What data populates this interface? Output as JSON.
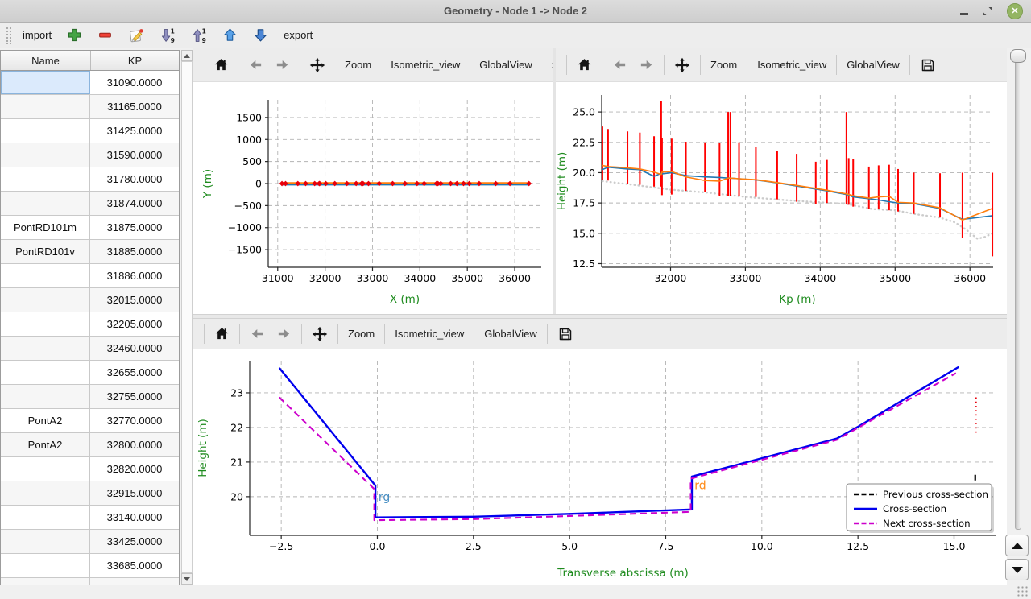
{
  "window": {
    "title": "Geometry - Node 1 -> Node 2",
    "close_glyph": "✕"
  },
  "main_toolbar": {
    "import_label": "import",
    "export_label": "export"
  },
  "table": {
    "columns": [
      "Name",
      "KP"
    ],
    "rows": [
      {
        "name": "",
        "kp": "31090.0000"
      },
      {
        "name": "",
        "kp": "31165.0000"
      },
      {
        "name": "",
        "kp": "31425.0000"
      },
      {
        "name": "",
        "kp": "31590.0000"
      },
      {
        "name": "",
        "kp": "31780.0000"
      },
      {
        "name": "",
        "kp": "31874.0000"
      },
      {
        "name": "PontRD101m",
        "kp": "31875.0000"
      },
      {
        "name": "PontRD101v",
        "kp": "31885.0000"
      },
      {
        "name": "",
        "kp": "31886.0000"
      },
      {
        "name": "",
        "kp": "32015.0000"
      },
      {
        "name": "",
        "kp": "32205.0000"
      },
      {
        "name": "",
        "kp": "32460.0000"
      },
      {
        "name": "",
        "kp": "32655.0000"
      },
      {
        "name": "",
        "kp": "32755.0000"
      },
      {
        "name": "PontA2",
        "kp": "32770.0000"
      },
      {
        "name": "PontA2",
        "kp": "32800.0000"
      },
      {
        "name": "",
        "kp": "32820.0000"
      },
      {
        "name": "",
        "kp": "32915.0000"
      },
      {
        "name": "",
        "kp": "33140.0000"
      },
      {
        "name": "",
        "kp": "33425.0000"
      },
      {
        "name": "",
        "kp": "33685.0000"
      },
      {
        "name": "",
        "kp": ""
      }
    ]
  },
  "chart_toolbars": {
    "zoom_label": "Zoom",
    "isometric_label": "Isometric_view",
    "globalview_label": "GlobalView",
    "overflow_glyph": "»"
  },
  "chart_data": [
    {
      "id": "plan-view",
      "type": "line",
      "title": "",
      "xlabel": "X (m)",
      "ylabel": "Y (m)",
      "axis_label_color": "#1e8b1e",
      "grid": true,
      "xlim": [
        30800,
        36560
      ],
      "ylim": [
        -1900,
        1900
      ],
      "xticks": [
        31000,
        32000,
        33000,
        34000,
        35000,
        36000
      ],
      "xtick_labels": [
        "31000",
        "32000",
        "33000",
        "34000",
        "35000",
        "36000"
      ],
      "yticks": [
        -1500,
        -1000,
        -500,
        0,
        500,
        1000,
        1500
      ],
      "ytick_labels": [
        "−1500",
        "−1000",
        "−500",
        "0",
        "500",
        "1000",
        "1500"
      ],
      "series": [
        {
          "name": "reach-axis-blue",
          "color": "#1f77b4",
          "width": 2,
          "x": [
            31090,
            36290
          ],
          "y": [
            -25,
            -25
          ]
        },
        {
          "name": "reach-axis-orange",
          "color": "#ff7f0e",
          "width": 2.3,
          "x": [
            31090,
            36290
          ],
          "y": [
            12,
            12
          ]
        }
      ],
      "markers": {
        "name": "cross-section-markers",
        "color": "#e8000b",
        "shape": "diamond",
        "size": 3.4,
        "x": [
          31090,
          31165,
          31425,
          31590,
          31780,
          31875,
          31886,
          32015,
          32205,
          32460,
          32655,
          32770,
          32800,
          32915,
          33140,
          33425,
          33685,
          33940,
          34090,
          34350,
          34380,
          34440,
          34650,
          34780,
          34920,
          35040,
          35250,
          35600,
          35900,
          36300
        ],
        "y": 0
      }
    },
    {
      "id": "profile-view",
      "type": "line",
      "title": "",
      "xlabel": "Kp (m)",
      "ylabel": "Height (m)",
      "axis_label_color": "#1e8b1e",
      "grid": true,
      "xlim": [
        31080,
        36310
      ],
      "ylim": [
        12.2,
        26.4
      ],
      "xticks": [
        32000,
        33000,
        34000,
        35000,
        36000
      ],
      "xtick_labels": [
        "32000",
        "33000",
        "34000",
        "35000",
        "36000"
      ],
      "yticks": [
        12.5,
        15.0,
        17.5,
        20.0,
        22.5,
        25.0
      ],
      "ytick_labels": [
        "12.5",
        "15.0",
        "17.5",
        "20.0",
        "22.5",
        "25.0"
      ],
      "underlay": [
        {
          "name": "bottom-profile",
          "color": "#cccccc",
          "width": 2.4,
          "dash": "0.6,4.4",
          "linecap": "round",
          "x": [
            31090,
            31500,
            32000,
            32500,
            33000,
            33500,
            34000,
            34350,
            34700,
            35000,
            35300,
            35600,
            35800,
            35950,
            36100,
            36200,
            36300
          ],
          "y": [
            19.3,
            19.0,
            18.6,
            18.35,
            18.0,
            17.75,
            17.55,
            17.42,
            17.0,
            16.9,
            16.55,
            16.3,
            15.9,
            15.3,
            14.55,
            14.7,
            15.0
          ]
        }
      ],
      "stations": {
        "name": "cross-section-extents",
        "color": "#ff0000",
        "width": 2,
        "kp": [
          31090,
          31165,
          31425,
          31590,
          31780,
          31875,
          31886,
          32015,
          32205,
          32460,
          32655,
          32770,
          32800,
          32915,
          33140,
          33425,
          33685,
          33940,
          34090,
          34350,
          34380,
          34440,
          34650,
          34780,
          34920,
          35040,
          35250,
          35600,
          35900,
          36300
        ],
        "top": [
          23.8,
          23.6,
          23.4,
          23.3,
          23.0,
          25.9,
          22.85,
          22.8,
          22.55,
          22.5,
          22.45,
          25.0,
          25.0,
          22.5,
          22.15,
          21.8,
          21.55,
          20.9,
          21.05,
          25.0,
          21.2,
          21.15,
          20.5,
          20.6,
          20.65,
          20.3,
          20.0,
          19.95,
          20.0,
          20.0
        ],
        "bottom": [
          19.4,
          19.35,
          19.1,
          19.0,
          18.85,
          18.85,
          18.15,
          18.2,
          18.5,
          18.4,
          18.1,
          18.1,
          18.05,
          18.1,
          18.0,
          17.8,
          17.6,
          17.4,
          17.5,
          17.4,
          17.35,
          17.2,
          17.0,
          17.0,
          16.9,
          16.8,
          16.6,
          16.3,
          14.6,
          13.1
        ]
      },
      "series": [
        {
          "name": "left-bank-line",
          "color": "#1f77b4",
          "width": 1.6,
          "x": [
            31090,
            31165,
            31425,
            31590,
            31780,
            31875,
            31886,
            32015,
            32205,
            32460,
            32655,
            32770,
            32800,
            32915,
            33140,
            33425,
            33685,
            33940,
            34090,
            34350,
            34380,
            34440,
            34650,
            34780,
            34920,
            35040,
            35250,
            35600,
            35900,
            36300
          ],
          "y": [
            20.25,
            20.45,
            20.3,
            20.25,
            19.7,
            19.95,
            19.9,
            20.0,
            19.75,
            19.65,
            19.6,
            19.55,
            19.55,
            19.5,
            19.4,
            19.15,
            18.9,
            18.65,
            18.5,
            18.2,
            18.15,
            18.0,
            17.85,
            17.75,
            17.6,
            17.5,
            17.45,
            17.05,
            16.15,
            16.45
          ]
        },
        {
          "name": "right-bank-line",
          "color": "#ff7f0e",
          "width": 1.6,
          "x": [
            31090,
            31165,
            31425,
            31590,
            31780,
            31875,
            31886,
            32015,
            32205,
            32460,
            32655,
            32770,
            32800,
            32915,
            33140,
            33425,
            33685,
            33940,
            34090,
            34350,
            34380,
            34440,
            34650,
            34780,
            34920,
            35040,
            35250,
            35600,
            35900,
            36300
          ],
          "y": [
            20.6,
            20.5,
            20.4,
            20.3,
            20.05,
            19.85,
            20.05,
            20.1,
            19.65,
            19.35,
            19.3,
            19.55,
            19.55,
            19.5,
            19.42,
            19.18,
            18.95,
            18.7,
            18.55,
            18.25,
            18.2,
            18.1,
            17.9,
            18.0,
            18.05,
            17.55,
            17.5,
            17.1,
            16.1,
            17.05
          ]
        }
      ]
    },
    {
      "id": "cross-section-view",
      "type": "line",
      "title": "",
      "xlabel": "Transverse abscissa (m)",
      "ylabel": "Height (m)",
      "axis_label_color": "#1e8b1e",
      "grid": true,
      "xlim": [
        -3.32,
        16.1
      ],
      "ylim": [
        18.88,
        23.93
      ],
      "xticks": [
        -2.5,
        0,
        2.5,
        5,
        7.5,
        10,
        12.5,
        15
      ],
      "xtick_labels": [
        "−2.5",
        "0.0",
        "2.5",
        "5.0",
        "7.5",
        "10.0",
        "12.5",
        "15.0"
      ],
      "yticks": [
        20,
        21,
        22,
        23
      ],
      "ytick_labels": [
        "20",
        "21",
        "22",
        "23"
      ],
      "series": [
        {
          "name": "previous-cross-section",
          "color": "#000000",
          "width": 2.2,
          "dash": "7,5",
          "x": [
            15.55,
            15.55
          ],
          "y": [
            19.35,
            20.65
          ]
        },
        {
          "name": "previous-cross-section-upper-mark",
          "color": "#e8000b",
          "width": 2,
          "dash": "1.5,3.8",
          "x": [
            15.57,
            15.57
          ],
          "y": [
            21.85,
            22.95
          ]
        },
        {
          "name": "cross-section",
          "color": "#0000ee",
          "width": 2.4,
          "x": [
            -2.55,
            -0.05,
            -0.05,
            2.5,
            5.0,
            8.18,
            8.18,
            11.95,
            12.5,
            15.12
          ],
          "y": [
            23.72,
            20.32,
            19.4,
            19.42,
            19.5,
            19.63,
            20.58,
            21.68,
            22.02,
            23.75
          ]
        },
        {
          "name": "next-cross-section",
          "color": "#cc00cc",
          "width": 2.1,
          "dash": "8,5",
          "x": [
            -2.55,
            -0.08,
            -0.08,
            2.5,
            5.0,
            8.15,
            8.15,
            11.95,
            12.5,
            15.05
          ],
          "y": [
            22.87,
            20.22,
            19.32,
            19.35,
            19.44,
            19.56,
            20.52,
            21.64,
            21.99,
            23.57
          ]
        }
      ],
      "annotations": [
        {
          "text": "rg",
          "color": "#4a90c4",
          "x": 0.03,
          "y": 19.88
        },
        {
          "text": "rd",
          "color": "#ff8c1a",
          "x": 8.25,
          "y": 20.22
        }
      ],
      "legend": {
        "position": "bottom-right",
        "entries": [
          {
            "label": "Previous cross-section",
            "color": "#000000",
            "dash": true
          },
          {
            "label": "Cross-section",
            "color": "#0000ee",
            "dash": false
          },
          {
            "label": "Next cross-section",
            "color": "#cc00cc",
            "dash": true
          }
        ]
      }
    }
  ]
}
